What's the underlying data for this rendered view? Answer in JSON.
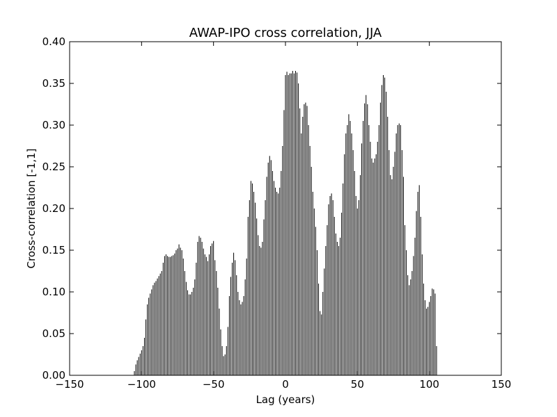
{
  "chart_data": {
    "type": "vlines",
    "title": "AWAP-IPO cross correlation, JJA",
    "xlabel": "Lag (years)",
    "ylabel": "Cross-correlation [-1,1]",
    "color": "#000000",
    "x": [
      -105,
      -104,
      -103,
      -102,
      -101,
      -100,
      -99,
      -98,
      -97,
      -96,
      -95,
      -94,
      -93,
      -92,
      -91,
      -90,
      -89,
      -88,
      -87,
      -86,
      -85,
      -84,
      -83,
      -82,
      -81,
      -80,
      -79,
      -78,
      -77,
      -76,
      -75,
      -74,
      -73,
      -72,
      -71,
      -70,
      -69,
      -68,
      -67,
      -66,
      -65,
      -64,
      -63,
      -62,
      -61,
      -60,
      -59,
      -58,
      -57,
      -56,
      -55,
      -54,
      -53,
      -52,
      -51,
      -50,
      -49,
      -48,
      -47,
      -46,
      -45,
      -44,
      -43,
      -42,
      -41,
      -40,
      -39,
      -38,
      -37,
      -36,
      -35,
      -34,
      -33,
      -32,
      -31,
      -30,
      -29,
      -28,
      -27,
      -26,
      -25,
      -24,
      -23,
      -22,
      -21,
      -20,
      -19,
      -18,
      -17,
      -16,
      -15,
      -14,
      -13,
      -12,
      -11,
      -10,
      -9,
      -8,
      -7,
      -6,
      -5,
      -4,
      -3,
      -2,
      -1,
      0,
      1,
      2,
      3,
      4,
      5,
      6,
      7,
      8,
      9,
      10,
      11,
      12,
      13,
      14,
      15,
      16,
      17,
      18,
      19,
      20,
      21,
      22,
      23,
      24,
      25,
      26,
      27,
      28,
      29,
      30,
      31,
      32,
      33,
      34,
      35,
      36,
      37,
      38,
      39,
      40,
      41,
      42,
      43,
      44,
      45,
      46,
      47,
      48,
      49,
      50,
      51,
      52,
      53,
      54,
      55,
      56,
      57,
      58,
      59,
      60,
      61,
      62,
      63,
      64,
      65,
      66,
      67,
      68,
      69,
      70,
      71,
      72,
      73,
      74,
      75,
      76,
      77,
      78,
      79,
      80,
      81,
      82,
      83,
      84,
      85,
      86,
      87,
      88,
      89,
      90,
      91,
      92,
      93,
      94,
      95,
      96,
      97,
      98,
      99,
      100,
      101,
      102,
      103,
      104,
      105
    ],
    "values": [
      0.005,
      0.013,
      0.018,
      0.022,
      0.026,
      0.03,
      0.035,
      0.045,
      0.067,
      0.085,
      0.093,
      0.098,
      0.103,
      0.108,
      0.111,
      0.113,
      0.116,
      0.119,
      0.122,
      0.125,
      0.135,
      0.143,
      0.145,
      0.143,
      0.142,
      0.142,
      0.143,
      0.144,
      0.146,
      0.15,
      0.152,
      0.157,
      0.153,
      0.15,
      0.14,
      0.125,
      0.112,
      0.102,
      0.097,
      0.097,
      0.1,
      0.105,
      0.115,
      0.135,
      0.16,
      0.167,
      0.165,
      0.16,
      0.152,
      0.145,
      0.142,
      0.137,
      0.145,
      0.155,
      0.158,
      0.161,
      0.138,
      0.125,
      0.105,
      0.08,
      0.055,
      0.035,
      0.023,
      0.025,
      0.035,
      0.058,
      0.095,
      0.118,
      0.135,
      0.147,
      0.138,
      0.12,
      0.1,
      0.09,
      0.085,
      0.088,
      0.095,
      0.115,
      0.14,
      0.19,
      0.21,
      0.233,
      0.23,
      0.22,
      0.207,
      0.188,
      0.168,
      0.155,
      0.153,
      0.16,
      0.187,
      0.21,
      0.238,
      0.255,
      0.263,
      0.258,
      0.245,
      0.233,
      0.225,
      0.22,
      0.218,
      0.225,
      0.245,
      0.275,
      0.318,
      0.36,
      0.364,
      0.36,
      0.362,
      0.362,
      0.365,
      0.362,
      0.365,
      0.363,
      0.35,
      0.32,
      0.29,
      0.31,
      0.325,
      0.327,
      0.323,
      0.3,
      0.275,
      0.25,
      0.22,
      0.2,
      0.178,
      0.15,
      0.11,
      0.077,
      0.073,
      0.1,
      0.128,
      0.155,
      0.18,
      0.205,
      0.215,
      0.218,
      0.21,
      0.19,
      0.17,
      0.16,
      0.155,
      0.165,
      0.195,
      0.23,
      0.265,
      0.29,
      0.3,
      0.313,
      0.305,
      0.29,
      0.27,
      0.245,
      0.215,
      0.2,
      0.21,
      0.24,
      0.278,
      0.305,
      0.326,
      0.336,
      0.325,
      0.3,
      0.28,
      0.26,
      0.255,
      0.26,
      0.265,
      0.28,
      0.3,
      0.327,
      0.348,
      0.36,
      0.357,
      0.34,
      0.31,
      0.27,
      0.24,
      0.235,
      0.25,
      0.268,
      0.29,
      0.3,
      0.302,
      0.3,
      0.27,
      0.238,
      0.18,
      0.15,
      0.12,
      0.108,
      0.115,
      0.125,
      0.143,
      0.165,
      0.197,
      0.22,
      0.228,
      0.19,
      0.145,
      0.11,
      0.09,
      0.08,
      0.082,
      0.088,
      0.095,
      0.104,
      0.103,
      0.098,
      0.035
    ],
    "xlim": [
      -150,
      150
    ],
    "xticks": [
      {
        "value": -150,
        "label": "−150"
      },
      {
        "value": -100,
        "label": "−100"
      },
      {
        "value": -50,
        "label": "−50"
      },
      0,
      50,
      100,
      150
    ],
    "ylim": [
      0,
      0.4
    ],
    "yticks": [
      {
        "value": 0,
        "label": "0.00"
      },
      {
        "value": 0.05,
        "label": "0.05"
      },
      {
        "value": 0.1,
        "label": "0.10"
      },
      {
        "value": 0.15,
        "label": "0.15"
      },
      {
        "value": 0.2,
        "label": "0.20"
      },
      {
        "value": 0.25,
        "label": "0.25"
      },
      {
        "value": 0.3,
        "label": "0.30"
      },
      {
        "value": 0.35,
        "label": "0.35"
      },
      {
        "value": 0.4,
        "label": "0.40"
      }
    ]
  }
}
